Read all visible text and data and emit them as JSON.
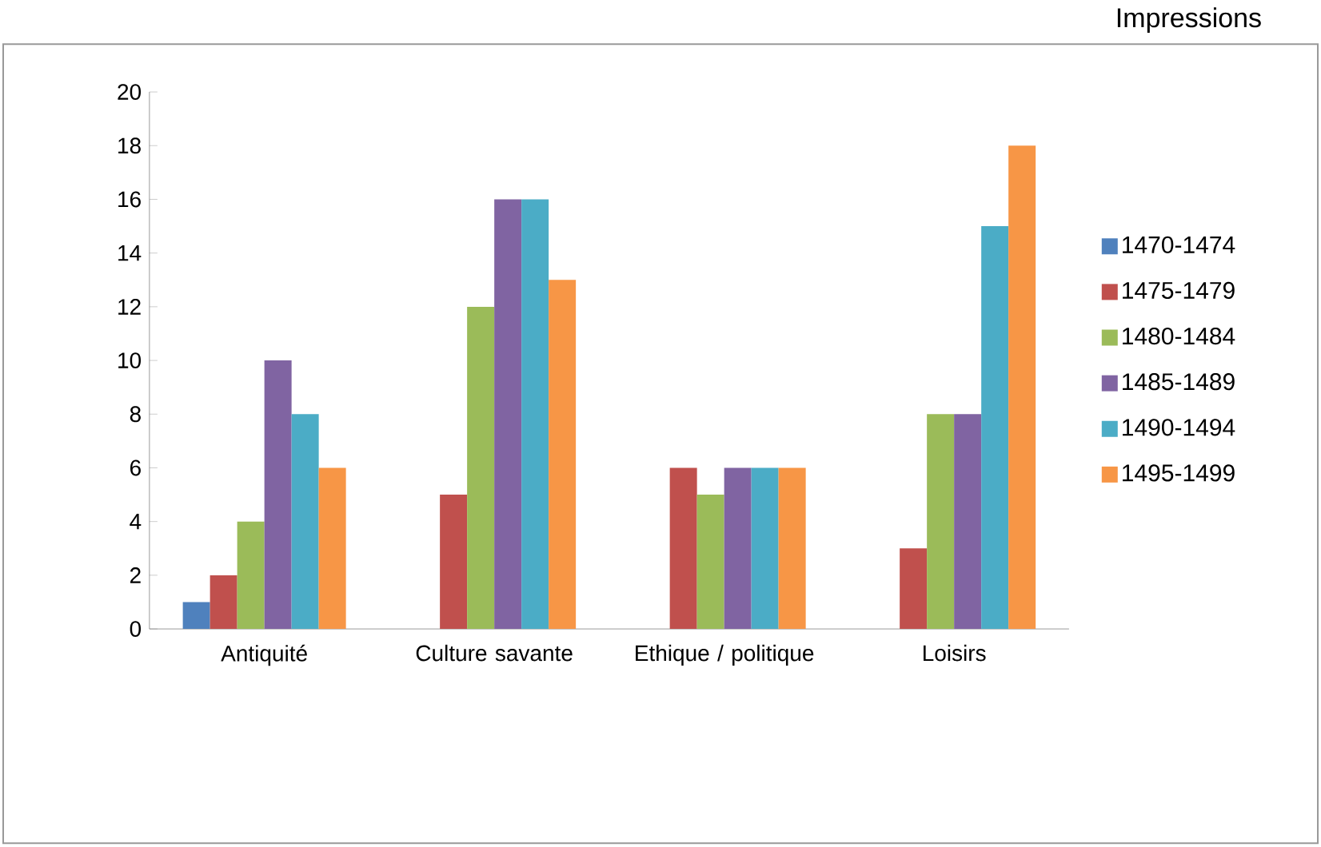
{
  "chart_data": {
    "type": "bar",
    "title": "Impressions",
    "categories": [
      "Antiquité",
      "Culture savante",
      "Ethique / politique",
      "Loisirs"
    ],
    "series": [
      {
        "name": "1470-1474",
        "color": "#4f81bd",
        "values": [
          1,
          0,
          0,
          0
        ]
      },
      {
        "name": "1475-1479",
        "color": "#c0504d",
        "values": [
          2,
          5,
          6,
          3
        ]
      },
      {
        "name": "1480-1484",
        "color": "#9bbb59",
        "values": [
          4,
          12,
          5,
          8
        ]
      },
      {
        "name": "1485-1489",
        "color": "#8064a2",
        "values": [
          10,
          16,
          6,
          8
        ]
      },
      {
        "name": "1490-1494",
        "color": "#4bacc6",
        "values": [
          8,
          16,
          6,
          15
        ]
      },
      {
        "name": "1495-1499",
        "color": "#f79646",
        "values": [
          6,
          13,
          6,
          18
        ]
      }
    ],
    "ylim": [
      0,
      20
    ],
    "yticks": [
      0,
      2,
      4,
      6,
      8,
      10,
      12,
      14,
      16,
      18,
      20
    ],
    "grid": false,
    "legend": "right"
  }
}
